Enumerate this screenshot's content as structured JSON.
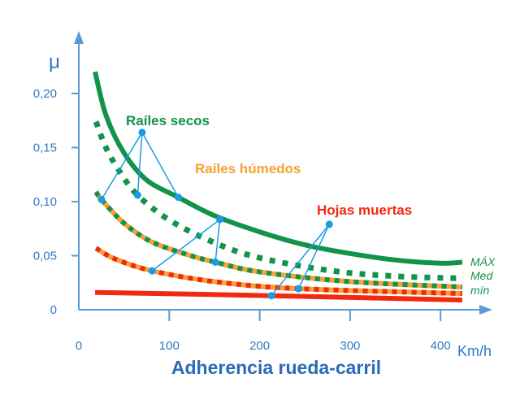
{
  "chart_data": {
    "type": "line",
    "title": "Adherencia rueda-carril",
    "xlabel": "Km/h",
    "ylabel": "μ",
    "xlim": [
      0,
      450
    ],
    "ylim": [
      0,
      0.25
    ],
    "x_ticks": [
      "0",
      "100",
      "200",
      "300",
      "400"
    ],
    "x_tick_values": [
      0,
      100,
      200,
      300,
      400
    ],
    "y_ticks": [
      "0",
      "0,05",
      "0,10",
      "0,15",
      "0,20"
    ],
    "y_tick_values": [
      0,
      0.05,
      0.1,
      0.15,
      0.2
    ],
    "grid": false,
    "colors": {
      "green": "#12934a",
      "orange": "#f7a035",
      "red": "#f02a10",
      "axis": "#5b9bd5",
      "annotation": "#1a9be6",
      "title": "#2a6ab8"
    },
    "series": [
      {
        "style": "solid-green",
        "points": [
          [
            18,
            0.22
          ],
          [
            30,
            0.18
          ],
          [
            50,
            0.145
          ],
          [
            75,
            0.12
          ],
          [
            110,
            0.104
          ],
          [
            150,
            0.087
          ],
          [
            200,
            0.072
          ],
          [
            250,
            0.06
          ],
          [
            300,
            0.052
          ],
          [
            350,
            0.046
          ],
          [
            400,
            0.043
          ],
          [
            424,
            0.044
          ]
        ]
      },
      {
        "style": "dotted-green",
        "points": [
          [
            19,
            0.174
          ],
          [
            30,
            0.15
          ],
          [
            45,
            0.128
          ],
          [
            65,
            0.106
          ],
          [
            100,
            0.083
          ],
          [
            150,
            0.062
          ],
          [
            200,
            0.048
          ],
          [
            280,
            0.036
          ],
          [
            350,
            0.031
          ],
          [
            424,
            0.029
          ]
        ]
      },
      {
        "style": "green-orange",
        "points": [
          [
            19,
            0.109
          ],
          [
            25,
            0.102
          ],
          [
            50,
            0.08
          ],
          [
            80,
            0.063
          ],
          [
            120,
            0.051
          ],
          [
            151,
            0.044
          ],
          [
            200,
            0.035
          ],
          [
            300,
            0.026
          ],
          [
            424,
            0.021
          ]
        ]
      },
      {
        "style": "red-orange",
        "points": [
          [
            19,
            0.057
          ],
          [
            40,
            0.047
          ],
          [
            81,
            0.036
          ],
          [
            150,
            0.026
          ],
          [
            243,
            0.0195
          ],
          [
            424,
            0.015
          ]
        ]
      },
      {
        "style": "solid-red",
        "points": [
          [
            18,
            0.016
          ],
          [
            213,
            0.013
          ],
          [
            424,
            0.009
          ]
        ]
      }
    ],
    "legend": [
      "MÁX",
      "Med",
      "mín"
    ],
    "annotations": [
      {
        "text": "Raíles secos",
        "color": "#12934a",
        "anchor": [
          70,
          0.164
        ],
        "targets": [
          [
            25,
            0.102
          ],
          [
            65,
            0.106
          ],
          [
            110,
            0.104
          ]
        ]
      },
      {
        "text": "Raíles húmedos",
        "color": "#f7a035",
        "anchor": [
          156,
          0.0835
        ],
        "targets": [
          [
            81,
            0.036
          ],
          [
            151,
            0.044
          ]
        ]
      },
      {
        "text": "Hojas muertas",
        "color": "#f02a10",
        "anchor": [
          277,
          0.079
        ],
        "targets": [
          [
            213,
            0.013
          ],
          [
            243,
            0.0195
          ]
        ]
      }
    ]
  }
}
